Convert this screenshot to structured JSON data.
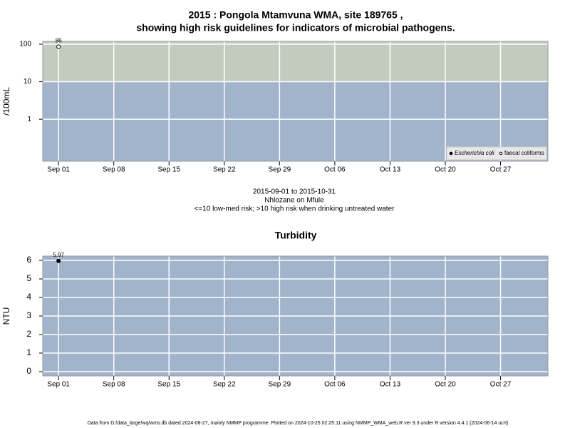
{
  "chart_data": [
    {
      "type": "scatter",
      "title": [
        "2015 : Pongola Mtamvuna WMA, site 189765 ,",
        "showing high risk guidelines for indicators of microbial pathogens."
      ],
      "ylabel": "/100mL",
      "log_y": true,
      "xlim": [
        "2015-08-30",
        "2015-11-02"
      ],
      "xticks": [
        {
          "value": "2015-09-01",
          "label": "Sep 01"
        },
        {
          "value": "2015-09-08",
          "label": "Sep 08"
        },
        {
          "value": "2015-09-15",
          "label": "Sep 15"
        },
        {
          "value": "2015-09-22",
          "label": "Sep 22"
        },
        {
          "value": "2015-09-29",
          "label": "Sep 29"
        },
        {
          "value": "2015-10-06",
          "label": "Oct 06"
        },
        {
          "value": "2015-10-13",
          "label": "Oct 13"
        },
        {
          "value": "2015-10-20",
          "label": "Oct 20"
        },
        {
          "value": "2015-10-27",
          "label": "Oct 27"
        }
      ],
      "ylim": [
        0.076,
        119
      ],
      "yticks": [
        1,
        10,
        100
      ],
      "grid": true,
      "background": "#c3cbbf",
      "low_risk_band": {
        "max": 10,
        "color": "#a2b3cc"
      },
      "legend": "bottom right",
      "series": [
        {
          "name": "Escherichia coli",
          "marker": "filled",
          "color": "#000000",
          "x": [],
          "values": []
        },
        {
          "name": "faecal coliforms",
          "marker": "open",
          "color": "#000000",
          "x": [
            "2015-09-01"
          ],
          "values": [
            86
          ]
        }
      ],
      "notes": [
        "2015-09-01 to 2015-10-31",
        "Nhlozane on Mfule",
        "<=10 low-med risk; >10 high risk when drinking untreated water"
      ]
    },
    {
      "type": "scatter",
      "title": [
        "Turbidity"
      ],
      "ylabel": "NTU",
      "log_y": false,
      "xlim": [
        "2015-08-30",
        "2015-11-02"
      ],
      "xticks": [
        {
          "value": "2015-09-01",
          "label": "Sep 01"
        },
        {
          "value": "2015-09-08",
          "label": "Sep 08"
        },
        {
          "value": "2015-09-15",
          "label": "Sep 15"
        },
        {
          "value": "2015-09-22",
          "label": "Sep 22"
        },
        {
          "value": "2015-09-29",
          "label": "Sep 29"
        },
        {
          "value": "2015-10-06",
          "label": "Oct 06"
        },
        {
          "value": "2015-10-13",
          "label": "Oct 13"
        },
        {
          "value": "2015-10-20",
          "label": "Oct 20"
        },
        {
          "value": "2015-10-27",
          "label": "Oct 27"
        }
      ],
      "ylim": [
        -0.23,
        6.23
      ],
      "yticks": [
        0,
        1,
        2,
        3,
        4,
        5,
        6
      ],
      "grid": true,
      "background": "#a2b3cc",
      "series": [
        {
          "name": "Turbidity",
          "marker": "filled",
          "color": "#000000",
          "x": [
            "2015-09-01"
          ],
          "values": [
            5.97
          ]
        }
      ]
    }
  ],
  "footer": "Data from D:/data_large/wq/wms.db dated 2024-08-27, mainly NMMP programme. Plotted on 2024-10-25 02:25:11 using NMMP_WMA_web.R ver 9.3 under R version 4.4.1 (2024-06-14 ucrt)"
}
